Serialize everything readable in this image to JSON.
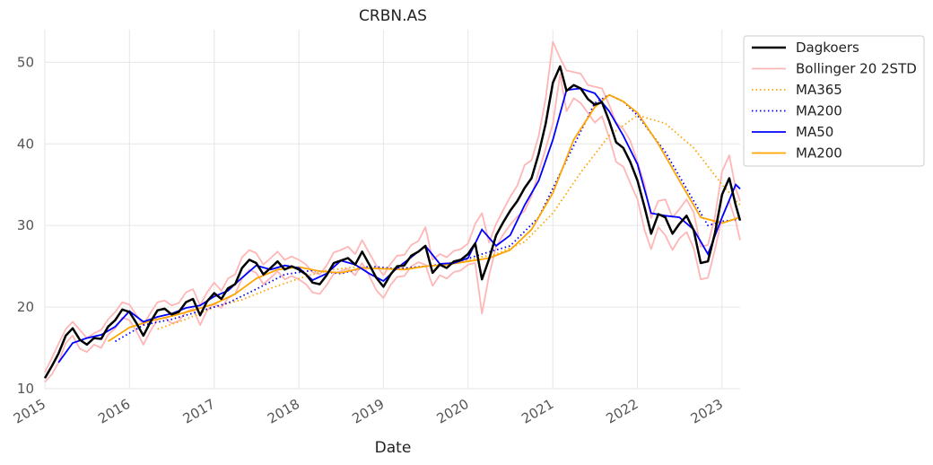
{
  "chart_data": {
    "type": "line",
    "title": "CRBN.AS",
    "xlabel": "Date",
    "ylabel": "",
    "xlim": [
      "2015-01-01",
      "2023-03-20"
    ],
    "ylim": [
      10,
      54
    ],
    "yticks": [
      10,
      20,
      30,
      40,
      50
    ],
    "xticks": [
      "2015-01-01",
      "2016-01-01",
      "2017-01-01",
      "2018-01-01",
      "2019-01-01",
      "2020-01-01",
      "2021-01-01",
      "2022-01-01",
      "2023-01-01"
    ],
    "xtick_labels": [
      "2015",
      "2016",
      "2017",
      "2018",
      "2019",
      "2020",
      "2021",
      "2022",
      "2023"
    ],
    "grid": true,
    "legend_position": "outside-top-right",
    "colors": {
      "dagkoers": "#000000",
      "bollinger": "#ffb6b6",
      "ma365": "#ffa500",
      "ma200": "#0000ff",
      "ma50": "#0000ff",
      "ma200_solid": "#ffa500",
      "grid": "#e6e6e6"
    },
    "legend": [
      {
        "label": "Dagkoers",
        "color": "#000000",
        "style": "solid",
        "width": 2.5
      },
      {
        "label": "Bollinger 20 2STD",
        "color": "#ffb6b6",
        "style": "solid",
        "width": 1.8
      },
      {
        "label": "MA365",
        "color": "#ffa500",
        "style": "dotted",
        "width": 1.8
      },
      {
        "label": "MA200",
        "color": "#0000ff",
        "style": "dotted",
        "width": 1.8
      },
      {
        "label": "MA50",
        "color": "#0000ff",
        "style": "solid",
        "width": 1.8
      },
      {
        "label": "MA200",
        "color": "#ffa500",
        "style": "solid",
        "width": 1.8
      }
    ],
    "series": [
      {
        "name": "Dagkoers",
        "x": [
          "2015-01-01",
          "2015-02-01",
          "2015-03-01",
          "2015-04-01",
          "2015-05-01",
          "2015-06-01",
          "2015-07-01",
          "2015-08-01",
          "2015-09-01",
          "2015-10-01",
          "2015-11-01",
          "2015-12-01",
          "2016-01-01",
          "2016-02-01",
          "2016-03-01",
          "2016-04-01",
          "2016-05-01",
          "2016-06-01",
          "2016-07-01",
          "2016-08-01",
          "2016-09-01",
          "2016-10-01",
          "2016-11-01",
          "2016-12-01",
          "2017-01-01",
          "2017-02-01",
          "2017-03-01",
          "2017-04-01",
          "2017-05-01",
          "2017-06-01",
          "2017-07-01",
          "2017-08-01",
          "2017-09-01",
          "2017-10-01",
          "2017-11-01",
          "2017-12-01",
          "2018-01-01",
          "2018-02-01",
          "2018-03-01",
          "2018-04-01",
          "2018-05-01",
          "2018-06-01",
          "2018-07-01",
          "2018-08-01",
          "2018-09-01",
          "2018-10-01",
          "2018-11-01",
          "2018-12-01",
          "2019-01-01",
          "2019-02-01",
          "2019-03-01",
          "2019-04-01",
          "2019-05-01",
          "2019-06-01",
          "2019-07-01",
          "2019-08-01",
          "2019-09-01",
          "2019-10-01",
          "2019-11-01",
          "2019-12-01",
          "2020-01-01",
          "2020-02-01",
          "2020-03-01",
          "2020-04-01",
          "2020-05-01",
          "2020-06-01",
          "2020-07-01",
          "2020-08-01",
          "2020-09-01",
          "2020-10-01",
          "2020-11-01",
          "2020-12-01",
          "2021-01-01",
          "2021-02-01",
          "2021-03-01",
          "2021-04-01",
          "2021-05-01",
          "2021-06-01",
          "2021-07-01",
          "2021-08-01",
          "2021-09-01",
          "2021-10-01",
          "2021-11-01",
          "2021-12-01",
          "2022-01-01",
          "2022-02-01",
          "2022-03-01",
          "2022-04-01",
          "2022-05-01",
          "2022-06-01",
          "2022-07-01",
          "2022-08-01",
          "2022-09-01",
          "2022-10-01",
          "2022-11-01",
          "2022-12-01",
          "2023-01-01",
          "2023-02-01",
          "2023-03-01",
          "2023-03-20"
        ],
        "values": [
          11.3,
          12.8,
          14.3,
          16.5,
          17.4,
          16.0,
          15.4,
          16.2,
          16.1,
          17.6,
          18.4,
          19.7,
          19.4,
          18.0,
          16.5,
          18.2,
          19.6,
          19.8,
          19.1,
          19.4,
          20.6,
          21.0,
          19.0,
          20.7,
          21.7,
          21.0,
          22.3,
          22.8,
          24.8,
          25.8,
          25.4,
          24.0,
          24.8,
          25.6,
          24.6,
          25.0,
          24.6,
          24.0,
          23.0,
          22.8,
          23.9,
          25.4,
          25.7,
          26.0,
          25.2,
          26.8,
          25.2,
          23.6,
          22.5,
          24.0,
          25.0,
          25.1,
          26.3,
          26.8,
          27.5,
          24.2,
          25.2,
          24.8,
          25.6,
          25.8,
          26.5,
          27.8,
          23.4,
          25.9,
          28.8,
          30.4,
          31.8,
          33.0,
          34.6,
          35.8,
          38.8,
          42.5,
          47.5,
          49.5,
          46.5,
          47.2,
          46.8,
          45.5,
          44.8,
          45.1,
          42.8,
          40.2,
          39.5,
          37.8,
          35.5,
          32.2,
          29.0,
          31.4,
          31.0,
          29.0,
          30.2,
          31.2,
          29.4,
          25.4,
          25.6,
          29.0,
          33.8,
          35.8,
          32.5,
          30.6
        ]
      },
      {
        "name": "Bollinger 20 2STD",
        "upper": [
          12.0,
          13.8,
          15.5,
          17.3,
          18.2,
          17.2,
          16.2,
          16.8,
          17.2,
          18.5,
          19.4,
          20.6,
          20.3,
          19.0,
          17.8,
          19.3,
          20.6,
          20.8,
          20.2,
          20.5,
          21.8,
          22.2,
          20.2,
          21.8,
          23.0,
          22.0,
          23.5,
          24.0,
          26.1,
          27.0,
          26.6,
          25.2,
          26.0,
          26.8,
          25.8,
          26.2,
          25.8,
          25.2,
          24.3,
          24.0,
          25.1,
          26.7,
          27.0,
          27.4,
          26.5,
          28.2,
          26.6,
          25.1,
          23.9,
          25.3,
          26.3,
          26.4,
          27.6,
          28.1,
          29.8,
          25.8,
          26.5,
          26.1,
          26.9,
          27.1,
          27.8,
          30.2,
          31.5,
          27.9,
          30.2,
          31.9,
          33.5,
          34.9,
          37.4,
          38.0,
          41.0,
          45.6,
          52.5,
          50.5,
          49.0,
          48.8,
          48.6,
          47.2,
          47.0,
          46.8,
          44.8,
          42.6,
          41.8,
          40.4,
          37.8,
          35.0,
          30.9,
          33.0,
          33.2,
          31.0,
          32.0,
          33.2,
          31.6,
          27.4,
          27.6,
          31.0,
          36.6,
          38.6,
          34.5,
          33.0
        ],
        "lower": [
          10.8,
          11.8,
          13.2,
          15.6,
          16.5,
          14.9,
          14.5,
          15.4,
          15.0,
          16.6,
          17.4,
          18.7,
          18.4,
          17.0,
          15.4,
          17.1,
          18.5,
          18.7,
          18.0,
          18.3,
          19.4,
          19.8,
          17.8,
          19.6,
          20.4,
          19.9,
          21.1,
          21.6,
          23.5,
          24.6,
          24.2,
          22.8,
          23.6,
          24.4,
          23.4,
          23.8,
          23.4,
          22.8,
          21.8,
          21.6,
          22.7,
          24.1,
          24.4,
          24.7,
          23.9,
          25.4,
          23.8,
          22.1,
          21.1,
          22.7,
          23.7,
          23.8,
          25.0,
          25.5,
          25.2,
          22.6,
          23.9,
          23.5,
          24.3,
          24.5,
          25.2,
          25.4,
          19.2,
          23.9,
          27.4,
          28.9,
          30.1,
          31.1,
          31.8,
          33.6,
          36.6,
          39.4,
          42.5,
          48.5,
          44.0,
          45.6,
          45.0,
          43.8,
          42.6,
          43.4,
          40.8,
          37.8,
          37.2,
          35.2,
          33.2,
          29.4,
          27.1,
          29.8,
          28.8,
          27.0,
          28.4,
          29.2,
          27.2,
          23.4,
          23.6,
          27.0,
          31.0,
          33.0,
          30.5,
          28.2
        ]
      },
      {
        "name": "MA365",
        "x": [
          "2016-05-01",
          "2016-09-01",
          "2017-01-01",
          "2017-05-01",
          "2017-09-01",
          "2018-01-01",
          "2018-05-01",
          "2018-09-01",
          "2019-01-01",
          "2019-05-01",
          "2019-09-01",
          "2020-01-01",
          "2020-05-01",
          "2020-09-01",
          "2021-01-01",
          "2021-05-01",
          "2021-09-01",
          "2022-01-01",
          "2022-05-01",
          "2022-09-01",
          "2023-01-01",
          "2023-03-20"
        ],
        "values": [
          17.3,
          18.5,
          20.0,
          20.9,
          22.3,
          23.5,
          24.5,
          24.9,
          24.7,
          24.8,
          25.2,
          25.8,
          26.5,
          28.0,
          31.5,
          36.5,
          41.0,
          43.5,
          42.5,
          39.5,
          35.0,
          32.5
        ]
      },
      {
        "name": "MA200",
        "x": [
          "2015-11-01",
          "2016-03-01",
          "2016-07-01",
          "2016-11-01",
          "2017-03-01",
          "2017-07-01",
          "2017-11-01",
          "2018-03-01",
          "2018-07-01",
          "2018-11-01",
          "2019-03-01",
          "2019-07-01",
          "2019-11-01",
          "2020-03-01",
          "2020-07-01",
          "2020-11-01",
          "2021-03-01",
          "2021-07-01",
          "2021-09-01",
          "2021-11-01",
          "2022-01-01",
          "2022-05-01",
          "2022-09-01",
          "2022-11-01",
          "2023-01-01",
          "2023-03-20"
        ],
        "values": [
          15.8,
          17.8,
          18.5,
          19.5,
          20.5,
          22.2,
          24.0,
          24.5,
          24.1,
          25.0,
          24.7,
          25.0,
          25.4,
          26.5,
          27.5,
          31.0,
          38.0,
          45.0,
          46.0,
          45.2,
          43.5,
          39.0,
          33.0,
          30.0,
          30.5,
          30.8
        ]
      },
      {
        "name": "MA50",
        "x": [
          "2015-03-01",
          "2015-05-01",
          "2015-07-01",
          "2015-09-01",
          "2015-11-01",
          "2016-01-01",
          "2016-03-01",
          "2016-05-01",
          "2016-07-01",
          "2016-09-01",
          "2016-11-01",
          "2017-01-01",
          "2017-03-01",
          "2017-05-01",
          "2017-07-01",
          "2017-09-01",
          "2017-11-01",
          "2018-01-01",
          "2018-03-01",
          "2018-05-01",
          "2018-07-01",
          "2018-09-01",
          "2018-11-01",
          "2019-01-01",
          "2019-03-01",
          "2019-05-01",
          "2019-07-01",
          "2019-09-01",
          "2019-11-01",
          "2020-01-01",
          "2020-03-01",
          "2020-05-01",
          "2020-07-01",
          "2020-09-01",
          "2020-11-01",
          "2021-01-01",
          "2021-03-01",
          "2021-05-01",
          "2021-07-01",
          "2021-09-01",
          "2021-11-01",
          "2022-01-01",
          "2022-03-01",
          "2022-05-01",
          "2022-07-01",
          "2022-09-01",
          "2022-11-01",
          "2023-01-01",
          "2023-03-01",
          "2023-03-20"
        ],
        "values": [
          13.2,
          15.6,
          16.2,
          16.6,
          17.6,
          19.5,
          18.2,
          18.8,
          19.2,
          19.9,
          20.2,
          21.3,
          22.0,
          23.6,
          25.1,
          24.6,
          25.1,
          24.8,
          23.3,
          24.1,
          25.7,
          25.2,
          24.1,
          23.2,
          24.8,
          26.1,
          27.5,
          25.3,
          25.4,
          26.0,
          29.5,
          27.5,
          28.8,
          32.5,
          35.5,
          40.5,
          46.6,
          46.8,
          46.2,
          44.0,
          41.0,
          37.5,
          31.5,
          31.2,
          31.0,
          29.5,
          26.5,
          31.0,
          35.0,
          34.5
        ]
      },
      {
        "name": "MA200",
        "x": [
          "2015-10-01",
          "2016-01-01",
          "2016-04-01",
          "2016-07-01",
          "2016-10-01",
          "2017-01-01",
          "2017-04-01",
          "2017-07-01",
          "2017-10-01",
          "2018-01-01",
          "2018-04-01",
          "2018-07-01",
          "2018-10-01",
          "2019-01-01",
          "2019-04-01",
          "2019-07-01",
          "2019-10-01",
          "2020-01-01",
          "2020-04-01",
          "2020-07-01",
          "2020-10-01",
          "2021-01-01",
          "2021-04-01",
          "2021-07-01",
          "2021-09-01",
          "2021-11-01",
          "2022-01-01",
          "2022-04-01",
          "2022-07-01",
          "2022-10-01",
          "2023-01-01",
          "2023-03-20"
        ],
        "values": [
          15.8,
          17.5,
          18.3,
          18.9,
          19.6,
          20.4,
          21.6,
          23.5,
          24.6,
          24.9,
          24.4,
          24.2,
          24.8,
          24.7,
          24.6,
          25.0,
          25.2,
          25.6,
          26.0,
          27.0,
          29.5,
          34.0,
          40.5,
          44.5,
          46.0,
          45.2,
          43.8,
          40.0,
          35.5,
          31.0,
          30.3,
          31.0
        ]
      }
    ]
  }
}
